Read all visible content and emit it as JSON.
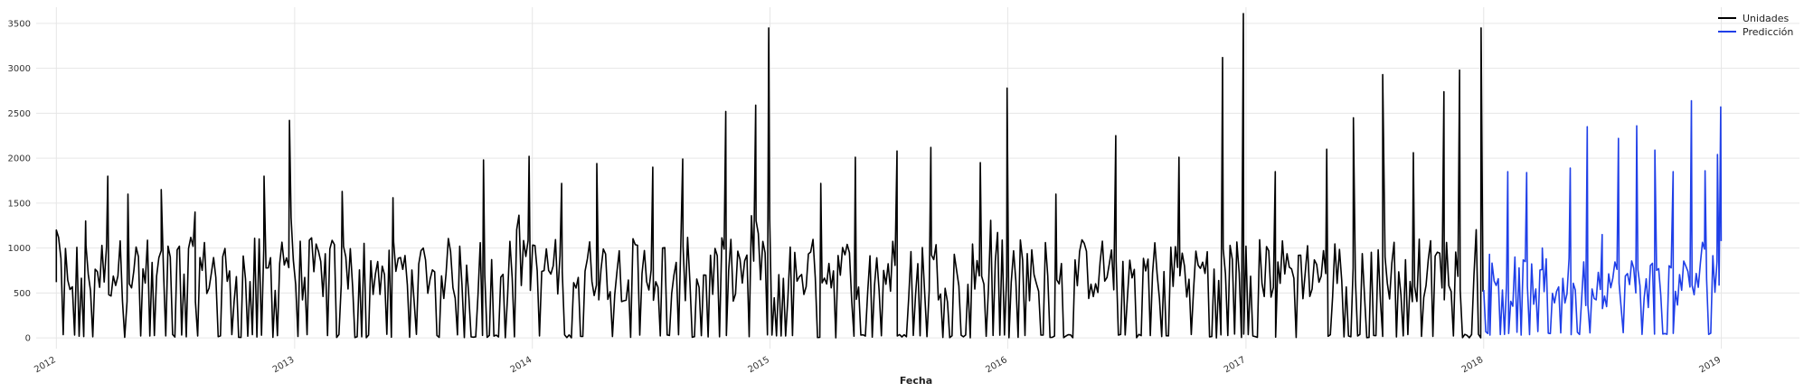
{
  "chart_data": {
    "type": "line",
    "xlabel": "Fecha",
    "ylabel": "",
    "title": "",
    "x_axis": {
      "type": "date",
      "range": [
        "2011-12-01",
        "2019-05-01"
      ],
      "ticks": [
        "2012",
        "2013",
        "2014",
        "2015",
        "2016",
        "2017",
        "2018",
        "2019"
      ]
    },
    "y_axis": {
      "range": [
        -120,
        3680
      ],
      "ticks": [
        0,
        500,
        1000,
        1500,
        2000,
        2500,
        3000,
        3500
      ]
    },
    "grid": true,
    "legend": {
      "position": "top-right"
    },
    "series": [
      {
        "name": "Unidades",
        "color": "#000000",
        "date_range": [
          "2012-01-01",
          "2018-01-01"
        ],
        "points": [
          [
            "2012-01-01",
            1200
          ],
          [
            "2012-02-15",
            1300
          ],
          [
            "2012-03-20",
            1800
          ],
          [
            "2012-04-20",
            1600
          ],
          [
            "2012-06-10",
            1650
          ],
          [
            "2012-08-01",
            1400
          ],
          [
            "2012-11-15",
            1800
          ],
          [
            "2012-12-24",
            2420
          ],
          [
            "2013-03-15",
            1630
          ],
          [
            "2013-06-01",
            1560
          ],
          [
            "2013-10-18",
            1980
          ],
          [
            "2013-12-27",
            2020
          ],
          [
            "2014-02-15",
            1720
          ],
          [
            "2014-04-10",
            1940
          ],
          [
            "2014-07-05",
            1900
          ],
          [
            "2014-08-20",
            1990
          ],
          [
            "2014-10-25",
            2520
          ],
          [
            "2014-12-10",
            2590
          ],
          [
            "2014-12-30",
            3450
          ],
          [
            "2015-03-20",
            1720
          ],
          [
            "2015-05-12",
            2010
          ],
          [
            "2015-07-15",
            2080
          ],
          [
            "2015-09-05",
            2120
          ],
          [
            "2015-11-20",
            1950
          ],
          [
            "2015-12-31",
            2780
          ],
          [
            "2016-03-15",
            1600
          ],
          [
            "2016-06-15",
            2250
          ],
          [
            "2016-09-20",
            2010
          ],
          [
            "2016-11-26",
            3120
          ],
          [
            "2016-12-28",
            3610
          ],
          [
            "2017-02-15",
            1850
          ],
          [
            "2017-05-05",
            2100
          ],
          [
            "2017-06-15",
            2450
          ],
          [
            "2017-07-30",
            2930
          ],
          [
            "2017-09-15",
            2060
          ],
          [
            "2017-11-01",
            2740
          ],
          [
            "2017-11-25",
            2980
          ],
          [
            "2017-12-28",
            3450
          ]
        ],
        "baseline": 800,
        "floor": 0
      },
      {
        "name": "Predicción",
        "color": "#1f3fe8",
        "date_range": [
          "2018-01-01",
          "2019-01-01"
        ],
        "points": [
          [
            "2018-01-10",
            930
          ],
          [
            "2018-02-07",
            1850
          ],
          [
            "2018-03-08",
            1840
          ],
          [
            "2018-04-01",
            1000
          ],
          [
            "2018-05-14",
            1890
          ],
          [
            "2018-06-09",
            2350
          ],
          [
            "2018-07-02",
            1150
          ],
          [
            "2018-07-27",
            2220
          ],
          [
            "2018-08-24",
            2360
          ],
          [
            "2018-09-21",
            2090
          ],
          [
            "2018-10-19",
            1850
          ],
          [
            "2018-11-16",
            2640
          ],
          [
            "2018-12-07",
            1860
          ],
          [
            "2018-12-26",
            2040
          ],
          [
            "2018-12-31",
            2570
          ]
        ],
        "baseline": 650,
        "floor": 30
      }
    ]
  }
}
